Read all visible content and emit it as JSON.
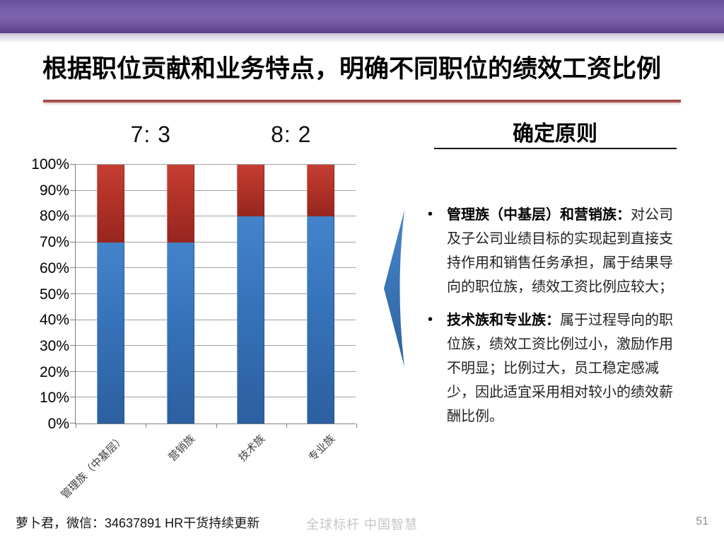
{
  "slide": {
    "title": "根据职位贡献和业务特点，明确不同职位的绩效工资比例"
  },
  "chart_data": {
    "type": "bar",
    "subtype": "stacked-100-percent",
    "categories": [
      "管理族（中基层）",
      "营销族",
      "技术族",
      "专业族"
    ],
    "series": [
      {
        "name": "blue-segment",
        "color": "#3a76c2",
        "values": [
          70,
          70,
          80,
          80
        ]
      },
      {
        "name": "red-segment",
        "color": "#bb392e",
        "values": [
          30,
          30,
          20,
          20
        ]
      }
    ],
    "group_labels": [
      {
        "text": "7: 3",
        "span": [
          0,
          1
        ]
      },
      {
        "text": "8: 2",
        "span": [
          2,
          3
        ]
      }
    ],
    "title": "",
    "xlabel": "",
    "ylabel": "",
    "ylim": [
      0,
      100
    ],
    "ytick_step": 10,
    "ytick_suffix": "%",
    "grid": true,
    "legend": "none"
  },
  "principles": {
    "heading": "确定原则",
    "bullets": [
      {
        "lead": "管理族（中基层）和营销族：",
        "text": "对公司及子公司业绩目标的实现起到直接支持作用和销售任务承担，属于结果导向的职位族，绩效工资比例应较大；"
      },
      {
        "lead": "技术族和专业族：",
        "text": "属于过程导向的职位族，绩效工资比例过小，激励作用不明显；比例过大，员工稳定感减少，因此适宜采用相对较小的绩效薪酬比例。"
      }
    ]
  },
  "footer": {
    "left": "萝卜君，微信：34637891  HR干货持续更新",
    "watermark": "全球标杆 中国智慧",
    "page": "51"
  },
  "colors": {
    "banner_purple": "#6f559f",
    "title_rule_red": "#a4504c",
    "arrow_blue": "#3873b5",
    "bar_blue": "#3a76c2",
    "bar_red": "#bb392e",
    "gridline": "#a0a0a0",
    "axis": "#7f7f7f",
    "watermark_gray": "#c6c6c6"
  }
}
